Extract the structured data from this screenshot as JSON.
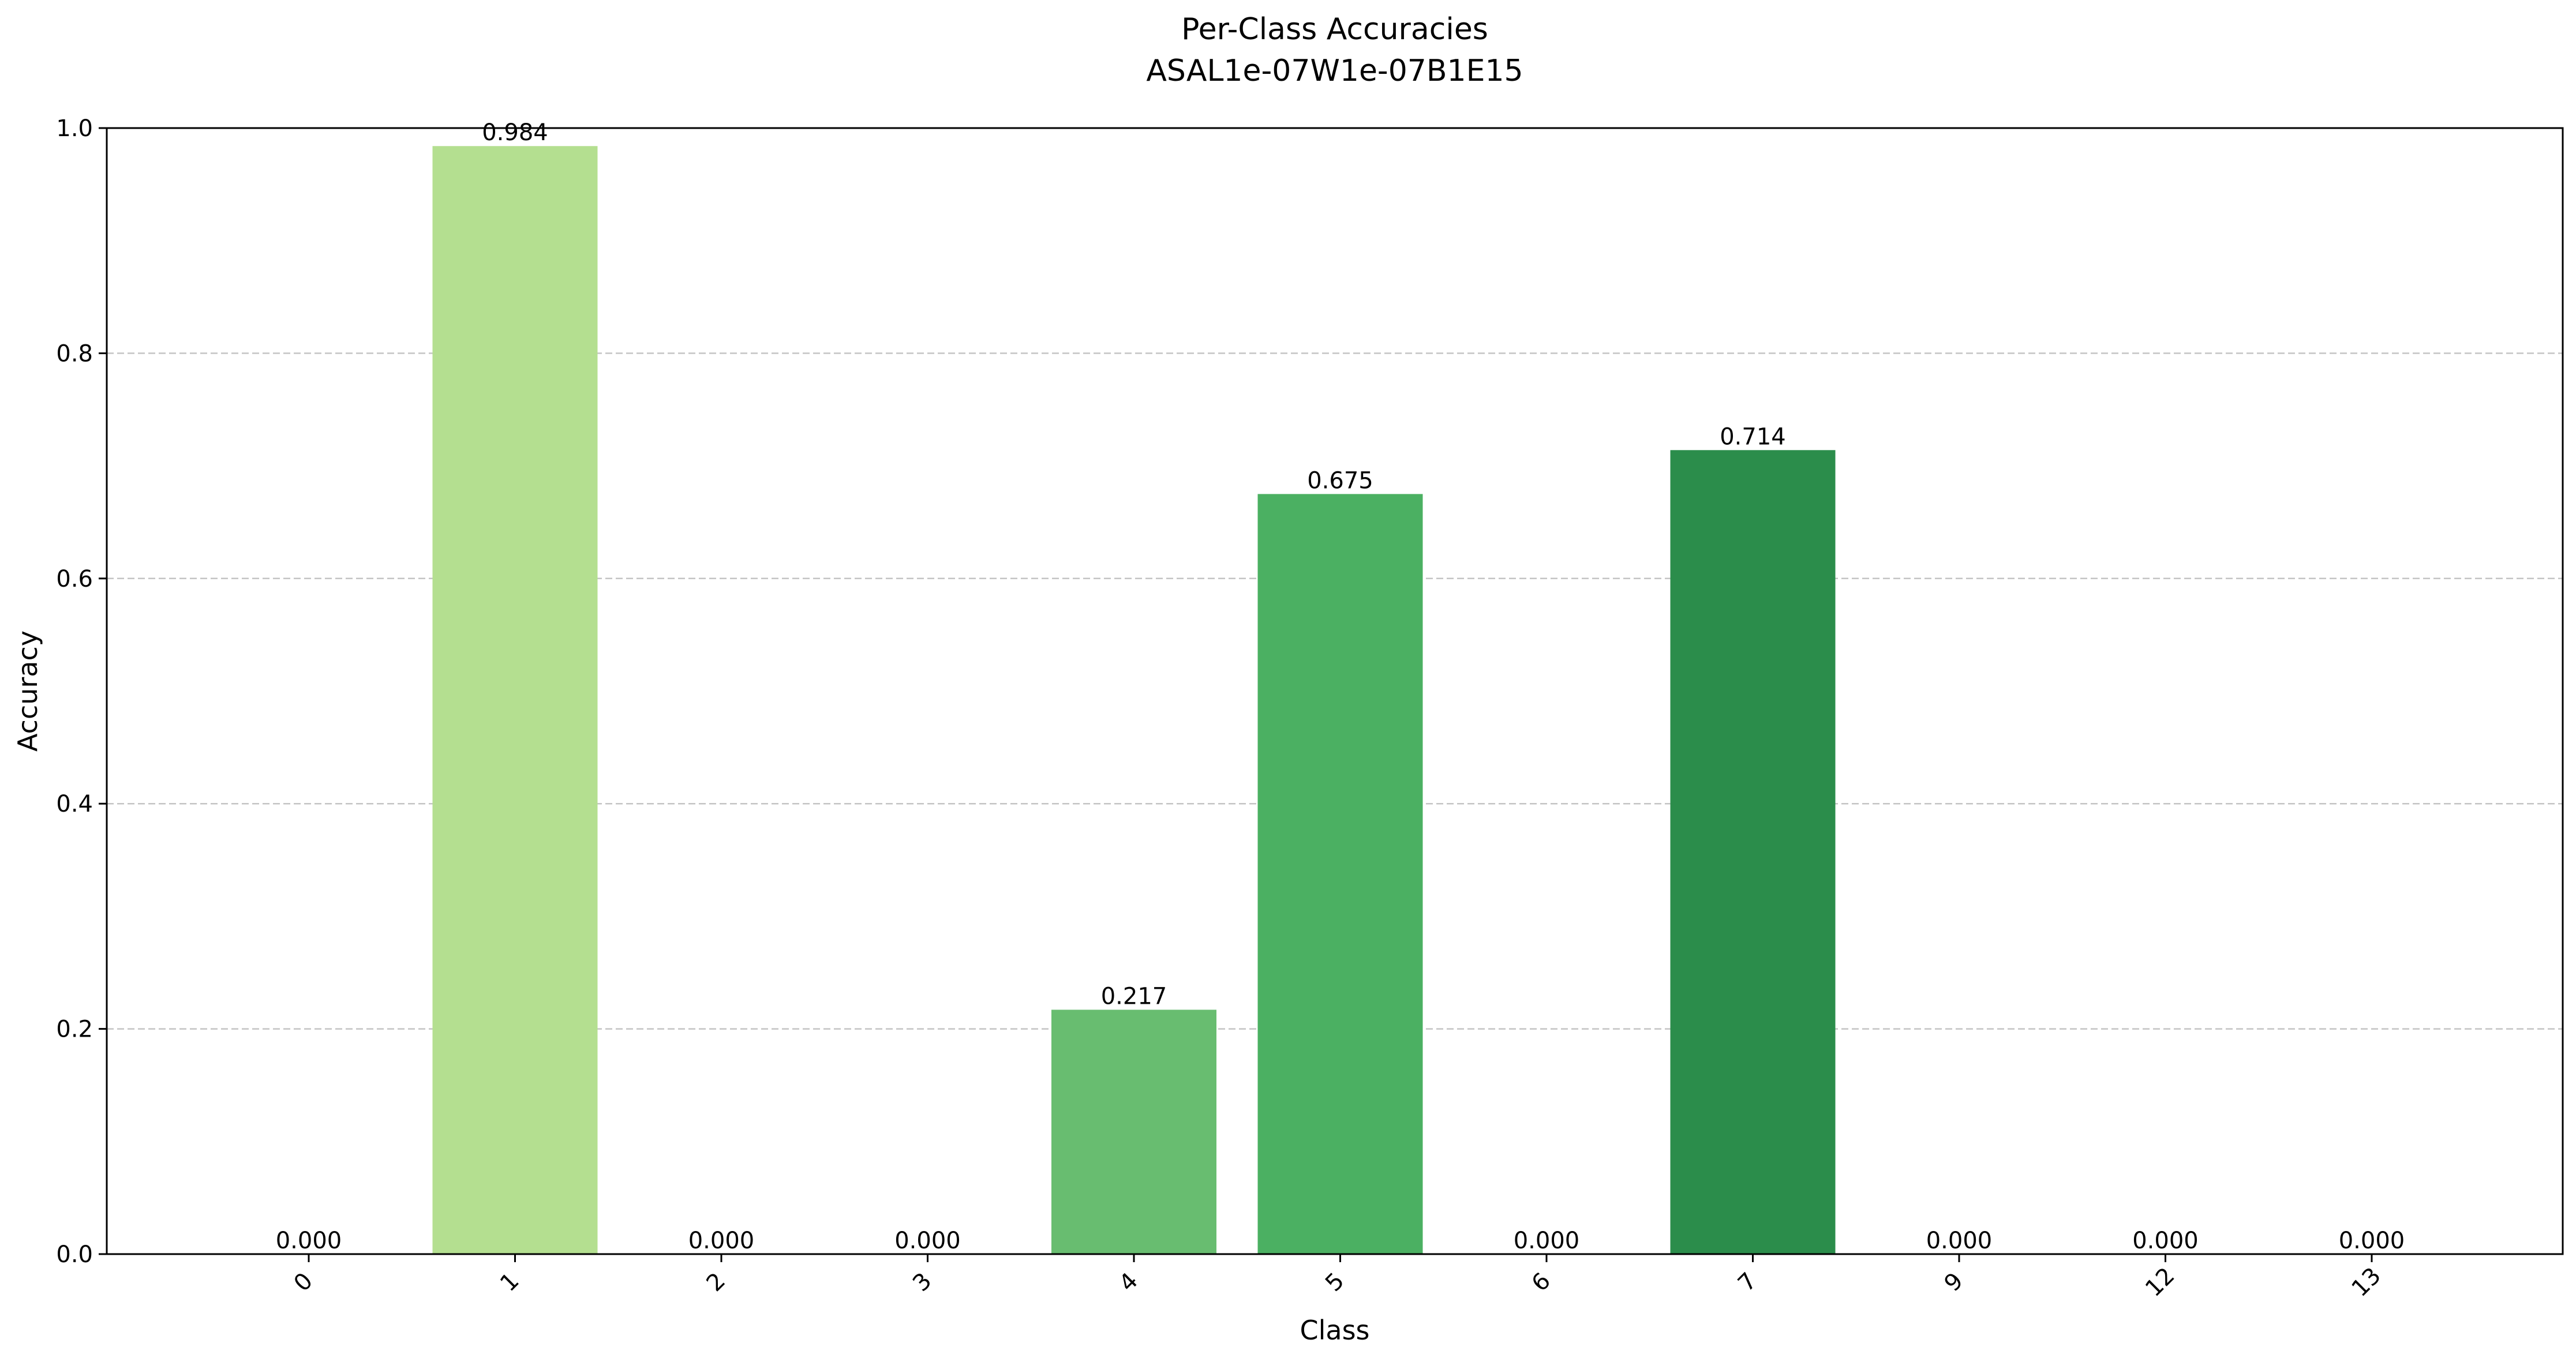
{
  "chart_data": {
    "type": "bar",
    "title": "Per-Class Accuracies",
    "subtitle": "ASAL1e-07W1e-07B1E15",
    "xlabel": "Class",
    "ylabel": "Accuracy",
    "ylim": [
      0,
      1.0
    ],
    "yticks": [
      0.0,
      0.2,
      0.4,
      0.6,
      0.8,
      1.0
    ],
    "ytick_labels": [
      "0.0",
      "0.2",
      "0.4",
      "0.6",
      "0.8",
      "1.0"
    ],
    "grid": "horizontal-dashed",
    "categories": [
      "0",
      "1",
      "2",
      "3",
      "4",
      "5",
      "6",
      "7",
      "9",
      "12",
      "13"
    ],
    "values": [
      0.0,
      0.984,
      0.0,
      0.0,
      0.217,
      0.675,
      0.0,
      0.714,
      0.0,
      0.0,
      0.0
    ],
    "value_labels": [
      "0.000",
      "0.984",
      "0.000",
      "0.000",
      "0.217",
      "0.675",
      "0.000",
      "0.714",
      "0.000",
      "0.000",
      "0.000"
    ],
    "colors": [
      "#b6e3a0",
      "#b4df90",
      "#a6d88e",
      "#8fcd7f",
      "#68bd70",
      "#4bb062",
      "#3b9f54",
      "#2b8d4b",
      "#1e7a3e",
      "#166c35",
      "#0e5e2c"
    ],
    "tick_rotation": 45
  }
}
